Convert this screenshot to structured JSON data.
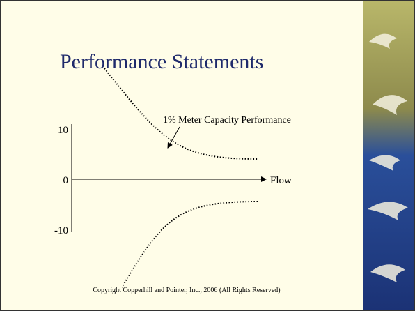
{
  "slide": {
    "title": "Performance Statements",
    "annotation": "1% Meter Capacity Performance",
    "axis": {
      "y_labels": [
        "10",
        "0",
        "-10"
      ],
      "x_label": "Flow"
    },
    "footer": "Copyright Copperhill and Pointer, Inc., 2006 (All Rights Reserved)"
  }
}
